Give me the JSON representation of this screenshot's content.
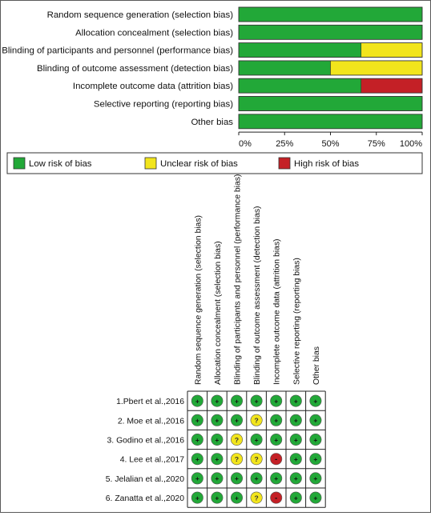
{
  "chart_data": [
    {
      "type": "bar",
      "orientation": "horizontal",
      "stacked": true,
      "categories": [
        "Random sequence generation (selection bias)",
        "Allocation concealment (selection bias)",
        "Blinding of participants and personnel (performance bias)",
        "Blinding of outcome assessment (detection bias)",
        "Incomplete outcome data (attrition bias)",
        "Selective reporting (reporting bias)",
        "Other bias"
      ],
      "series": [
        {
          "name": "Low risk of bias",
          "values": [
            100,
            100,
            66.7,
            50,
            66.7,
            100,
            100
          ]
        },
        {
          "name": "Unclear risk of bias",
          "values": [
            0,
            0,
            33.3,
            50,
            0,
            0,
            0
          ]
        },
        {
          "name": "High risk of bias",
          "values": [
            0,
            0,
            0,
            0,
            33.3,
            0,
            0
          ]
        }
      ],
      "xlim": [
        0,
        100
      ],
      "xticks": [
        "0%",
        "25%",
        "50%",
        "75%",
        "100%"
      ],
      "legend_position": "bottom"
    },
    {
      "type": "table",
      "columns": [
        "Random sequence generation (selection bias)",
        "Allocation concealment (selection bias)",
        "Blinding of participants and personnel (performance bias)",
        "Blinding of outcome assessment (detection bias)",
        "Incomplete outcome data (attrition bias)",
        "Selective reporting (reporting bias)",
        "Other bias"
      ],
      "rows": [
        {
          "study": "1.Pbert et al.,2016",
          "ratings": [
            "+",
            "+",
            "+",
            "+",
            "+",
            "+",
            "+"
          ]
        },
        {
          "study": "2. Moe et al.,2016",
          "ratings": [
            "+",
            "+",
            "+",
            "?",
            "+",
            "+",
            "+"
          ]
        },
        {
          "study": "3. Godino et al.,2016",
          "ratings": [
            "+",
            "+",
            "?",
            "+",
            "+",
            "+",
            "+"
          ]
        },
        {
          "study": "4. Lee et al.,2017",
          "ratings": [
            "+",
            "+",
            "?",
            "?",
            "-",
            "+",
            "+"
          ]
        },
        {
          "study": "5. Jelalian et al.,2020",
          "ratings": [
            "+",
            "+",
            "+",
            "+",
            "+",
            "+",
            "+"
          ]
        },
        {
          "study": "6. Zanatta et al.,2020",
          "ratings": [
            "+",
            "+",
            "+",
            "?",
            "-",
            "+",
            "+"
          ]
        }
      ],
      "rating_colors": {
        "+": "#22a838",
        "?": "#f2e51c",
        "-": "#c42026"
      }
    }
  ],
  "colors": {
    "low": "#22a838",
    "unclear": "#f2e51c",
    "high": "#c42026"
  }
}
